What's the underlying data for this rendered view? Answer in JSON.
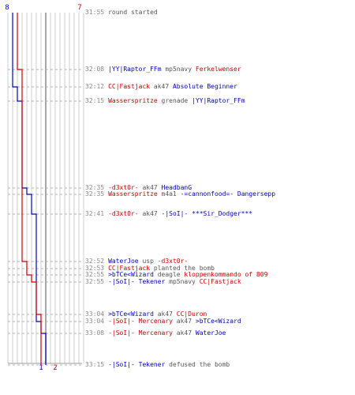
{
  "scores": {
    "ct_start": "8",
    "t_start": "7",
    "ct_end": "1",
    "t_end": "2"
  },
  "colors": {
    "ct": "#0000bb",
    "t": "#cc0000",
    "grid": "#cccccc",
    "gridDark": "#888888",
    "axis": "#999999",
    "dash": "#b0b0b0",
    "time": "#8a8a8a",
    "plain": "#555555"
  },
  "events": [
    {
      "time": "31:55",
      "parts": [
        {
          "text": "round started",
          "team": "g"
        }
      ]
    },
    {
      "time": "32:08",
      "parts": [
        {
          "text": "|YY|Raptor_FFm",
          "team": "CT"
        },
        {
          "text": " mp5navy ",
          "team": "g"
        },
        {
          "text": "Ferkelwenser",
          "team": "T"
        }
      ]
    },
    {
      "time": "32:12",
      "parts": [
        {
          "text": "CC|Fastjack",
          "team": "T"
        },
        {
          "text": " ak47 ",
          "team": "g"
        },
        {
          "text": "Absolute Beginner",
          "team": "CT"
        }
      ]
    },
    {
      "time": "32:15",
      "parts": [
        {
          "text": "Wasserspritze",
          "team": "T"
        },
        {
          "text": " grenade ",
          "team": "g"
        },
        {
          "text": "|YY|Raptor_FFm",
          "team": "CT"
        }
      ]
    },
    {
      "time": "32:35",
      "parts": [
        {
          "text": "-d3xt0r-",
          "team": "T"
        },
        {
          "text": " ak47 ",
          "team": "g"
        },
        {
          "text": "HeadbanG",
          "team": "CT"
        }
      ]
    },
    {
      "time": "32:35",
      "parts": [
        {
          "text": "Wasserspritze",
          "team": "T"
        },
        {
          "text": " m4a1 ",
          "team": "g"
        },
        {
          "text": "-=cannonfood=- Dangersepp",
          "team": "CT"
        }
      ]
    },
    {
      "time": "32:41",
      "parts": [
        {
          "text": "-d3xt0r-",
          "team": "T"
        },
        {
          "text": " ak47 ",
          "team": "g"
        },
        {
          "text": "-|SoI|- ***Sir_Dodger***",
          "team": "CT"
        }
      ]
    },
    {
      "time": "32:52",
      "parts": [
        {
          "text": "WaterJoe",
          "team": "CT"
        },
        {
          "text": " usp ",
          "team": "g"
        },
        {
          "text": "-d3xt0r-",
          "team": "T"
        }
      ]
    },
    {
      "time": "32:53",
      "parts": [
        {
          "text": "CC|Fastjack",
          "team": "T"
        },
        {
          "text": " planted the bomb",
          "team": "g"
        }
      ]
    },
    {
      "time": "32:55",
      "parts": [
        {
          "text": ">bTCe<Wizard",
          "team": "CT"
        },
        {
          "text": " deagle ",
          "team": "g"
        },
        {
          "text": "kloppenkommando of 809",
          "team": "T"
        }
      ]
    },
    {
      "time": "32:55",
      "parts": [
        {
          "text": "-|SoI|- Tekener",
          "team": "CT"
        },
        {
          "text": " mp5navy ",
          "team": "g"
        },
        {
          "text": "CC|Fastjack",
          "team": "T"
        }
      ]
    },
    {
      "time": "33:04",
      "parts": [
        {
          "text": ">bTCe<Wizard",
          "team": "CT"
        },
        {
          "text": " ak47 ",
          "team": "g"
        },
        {
          "text": "CC|Duron",
          "team": "T"
        }
      ]
    },
    {
      "time": "33:04",
      "parts": [
        {
          "text": "-|SoI|- Mercenary",
          "team": "T"
        },
        {
          "text": " ak47 ",
          "team": "g"
        },
        {
          "text": ">bTCe<Wizard",
          "team": "CT"
        }
      ]
    },
    {
      "time": "33:08",
      "parts": [
        {
          "text": "-|SoI|- Mercenary",
          "team": "T"
        },
        {
          "text": " ak47 ",
          "team": "g"
        },
        {
          "text": "WaterJoe",
          "team": "CT"
        }
      ]
    },
    {
      "time": "33:15",
      "parts": [
        {
          "text": "-|SoI|- Tekener",
          "team": "CT"
        },
        {
          "text": " defused the bomb",
          "team": "g"
        }
      ]
    }
  ]
}
